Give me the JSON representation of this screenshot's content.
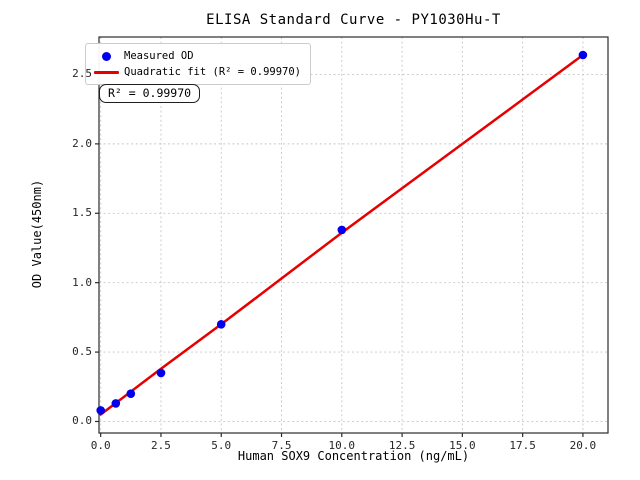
{
  "figure": {
    "title": "ELISA Standard Curve - PY1030Hu-T"
  },
  "legend": {
    "position": "upper left",
    "items": [
      {
        "label": "Measured OD",
        "marker": "circle",
        "color": "#0000ee"
      },
      {
        "label": "Quadratic fit (R² = 0.99970)",
        "marker": "line",
        "color": "#e60000"
      }
    ]
  },
  "annotation": {
    "r_squared_label": "R² = 0.99970"
  },
  "chart_data": {
    "type": "scatter",
    "title": "ELISA Standard Curve - PY1030Hu-T",
    "xlabel": "Human SOX9 Concentration (ng/mL)",
    "ylabel": "OD Value(450nm)",
    "xlim": [
      -0.07,
      21.04
    ],
    "ylim": [
      -0.083,
      2.77
    ],
    "grid": true,
    "legend_position": "upper left",
    "r_squared": 0.9997,
    "x_ticks": {
      "values": [
        0,
        2.5,
        5,
        7.5,
        10,
        12.5,
        15,
        17.5,
        20
      ],
      "labels": [
        "0.0",
        "2.5",
        "5.0",
        "7.5",
        "10.0",
        "12.5",
        "15.0",
        "17.5",
        "20.0"
      ]
    },
    "y_ticks": {
      "values": [
        0,
        0.5,
        1.0,
        1.5,
        2.0,
        2.5
      ],
      "labels": [
        "0.0",
        "0.5",
        "1.0",
        "1.5",
        "2.0",
        "2.5"
      ]
    },
    "series": [
      {
        "name": "Quadratic fit (R² = 0.99970)",
        "type": "line",
        "color": "#e60000",
        "x": [
          0,
          2.5,
          5,
          7.5,
          10,
          12.5,
          15,
          17.5,
          20
        ],
        "y": [
          0.05,
          0.38,
          0.7,
          1.03,
          1.36,
          1.68,
          2.0,
          2.32,
          2.64
        ]
      },
      {
        "name": "Measured OD",
        "type": "scatter",
        "color": "#0000ee",
        "x": [
          0,
          0.625,
          1.25,
          2.5,
          5,
          10,
          20
        ],
        "y": [
          0.08,
          0.13,
          0.2,
          0.35,
          0.7,
          1.38,
          2.64
        ]
      }
    ]
  }
}
